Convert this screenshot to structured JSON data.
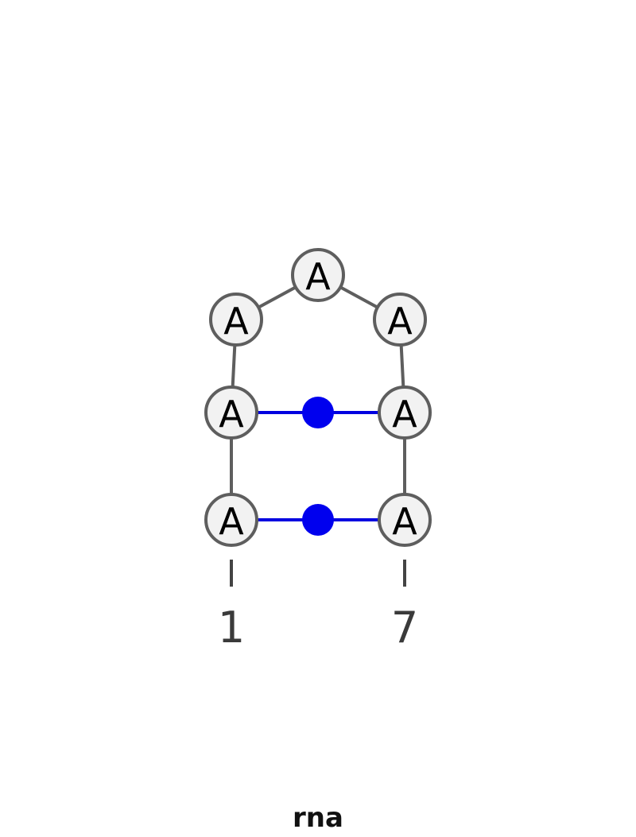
{
  "structure": {
    "title": "rna",
    "nucleotides": [
      {
        "index": 1,
        "base": "A"
      },
      {
        "index": 2,
        "base": "A"
      },
      {
        "index": 3,
        "base": "A"
      },
      {
        "index": 4,
        "base": "A"
      },
      {
        "index": 5,
        "base": "A"
      },
      {
        "index": 6,
        "base": "A"
      },
      {
        "index": 7,
        "base": "A"
      }
    ],
    "base_pairs": [
      {
        "from": 1,
        "to": 7
      },
      {
        "from": 2,
        "to": 6
      }
    ],
    "position_labels": [
      {
        "index": 1,
        "text": "1"
      },
      {
        "index": 7,
        "text": "7"
      }
    ],
    "colors": {
      "backbone": "#5e5e5e",
      "nucleotide_fill": "#f2f2f2",
      "base_pair": "#0000ee"
    }
  }
}
